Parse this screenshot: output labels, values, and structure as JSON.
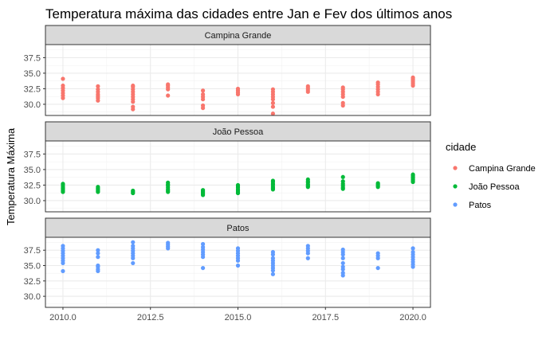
{
  "chart_data": {
    "type": "scatter",
    "title": "Temperatura máxima das cidades entre Jan e Fev dos últimos anos",
    "ylabel": "Temperatura Máxima",
    "xlabel": "",
    "x_ticks": [
      "2010.0",
      "2012.5",
      "2015.0",
      "2017.5",
      "2020.0"
    ],
    "x_tick_values": [
      2010,
      2012.5,
      2015,
      2017.5,
      2020
    ],
    "y_ticks": [
      "30.0",
      "32.5",
      "35.0",
      "37.5"
    ],
    "y_tick_values": [
      30,
      32.5,
      35,
      37.5
    ],
    "xlim": [
      2009.5,
      2020.5
    ],
    "ylim": [
      28.2,
      39.6
    ],
    "grid": true,
    "legend": {
      "title": "cidade",
      "position": "right"
    },
    "facets": [
      {
        "name": "Campina Grande",
        "color": "#F8766D",
        "points": [
          [
            2010,
            31.0
          ],
          [
            2010,
            31.4
          ],
          [
            2010,
            31.8
          ],
          [
            2010,
            32.2
          ],
          [
            2010,
            32.6
          ],
          [
            2010,
            33.0
          ],
          [
            2010,
            34.1
          ],
          [
            2011,
            30.6
          ],
          [
            2011,
            31.0
          ],
          [
            2011,
            31.3
          ],
          [
            2011,
            31.6
          ],
          [
            2011,
            32.0
          ],
          [
            2011,
            32.4
          ],
          [
            2011,
            32.9
          ],
          [
            2012,
            29.2
          ],
          [
            2012,
            29.6
          ],
          [
            2012,
            30.4
          ],
          [
            2012,
            30.8
          ],
          [
            2012,
            31.2
          ],
          [
            2012,
            31.6
          ],
          [
            2012,
            32.0
          ],
          [
            2012,
            32.4
          ],
          [
            2012,
            32.8
          ],
          [
            2012,
            33.0
          ],
          [
            2013,
            31.4
          ],
          [
            2013,
            32.4
          ],
          [
            2013,
            32.7
          ],
          [
            2013,
            33.0
          ],
          [
            2013,
            33.2
          ],
          [
            2014,
            29.4
          ],
          [
            2014,
            29.8
          ],
          [
            2014,
            30.8
          ],
          [
            2014,
            31.2
          ],
          [
            2014,
            31.6
          ],
          [
            2014,
            32.2
          ],
          [
            2015,
            31.6
          ],
          [
            2015,
            31.9
          ],
          [
            2015,
            32.2
          ],
          [
            2015,
            32.5
          ],
          [
            2016,
            28.5
          ],
          [
            2016,
            29.6
          ],
          [
            2016,
            30.2
          ],
          [
            2016,
            30.8
          ],
          [
            2016,
            31.2
          ],
          [
            2016,
            31.6
          ],
          [
            2016,
            32.0
          ],
          [
            2016,
            32.4
          ],
          [
            2017,
            32.0
          ],
          [
            2017,
            32.3
          ],
          [
            2017,
            32.6
          ],
          [
            2017,
            32.9
          ],
          [
            2018,
            29.8
          ],
          [
            2018,
            30.2
          ],
          [
            2018,
            31.2
          ],
          [
            2018,
            31.6
          ],
          [
            2018,
            32.0
          ],
          [
            2018,
            32.4
          ],
          [
            2018,
            32.7
          ],
          [
            2019,
            31.6
          ],
          [
            2019,
            32.0
          ],
          [
            2019,
            32.4
          ],
          [
            2019,
            32.8
          ],
          [
            2019,
            33.2
          ],
          [
            2019,
            33.5
          ],
          [
            2020,
            33.0
          ],
          [
            2020,
            33.3
          ],
          [
            2020,
            33.6
          ],
          [
            2020,
            33.9
          ],
          [
            2020,
            34.1
          ],
          [
            2020,
            34.3
          ]
        ]
      },
      {
        "name": "João Pessoa",
        "color": "#00BA38",
        "points": [
          [
            2010,
            31.4
          ],
          [
            2010,
            31.6
          ],
          [
            2010,
            31.8
          ],
          [
            2010,
            32.0
          ],
          [
            2010,
            32.2
          ],
          [
            2010,
            32.5
          ],
          [
            2010,
            32.7
          ],
          [
            2011,
            31.4
          ],
          [
            2011,
            31.6
          ],
          [
            2011,
            31.8
          ],
          [
            2011,
            32.0
          ],
          [
            2011,
            32.2
          ],
          [
            2012,
            31.2
          ],
          [
            2012,
            31.4
          ],
          [
            2012,
            31.6
          ],
          [
            2013,
            31.4
          ],
          [
            2013,
            31.6
          ],
          [
            2013,
            31.8
          ],
          [
            2013,
            32.1
          ],
          [
            2013,
            32.4
          ],
          [
            2013,
            32.6
          ],
          [
            2013,
            32.9
          ],
          [
            2014,
            30.9
          ],
          [
            2014,
            31.1
          ],
          [
            2014,
            31.3
          ],
          [
            2014,
            31.5
          ],
          [
            2014,
            31.7
          ],
          [
            2015,
            31.2
          ],
          [
            2015,
            31.4
          ],
          [
            2015,
            31.6
          ],
          [
            2015,
            31.8
          ],
          [
            2015,
            32.1
          ],
          [
            2015,
            32.3
          ],
          [
            2015,
            32.5
          ],
          [
            2016,
            31.8
          ],
          [
            2016,
            32.0
          ],
          [
            2016,
            32.2
          ],
          [
            2016,
            32.5
          ],
          [
            2016,
            32.7
          ],
          [
            2016,
            33.0
          ],
          [
            2016,
            33.2
          ],
          [
            2017,
            32.2
          ],
          [
            2017,
            32.4
          ],
          [
            2017,
            32.6
          ],
          [
            2017,
            32.9
          ],
          [
            2017,
            33.1
          ],
          [
            2017,
            33.4
          ],
          [
            2018,
            31.9
          ],
          [
            2018,
            32.1
          ],
          [
            2018,
            32.4
          ],
          [
            2018,
            32.7
          ],
          [
            2018,
            33.1
          ],
          [
            2018,
            33.8
          ],
          [
            2019,
            32.2
          ],
          [
            2019,
            32.4
          ],
          [
            2019,
            32.6
          ],
          [
            2019,
            32.8
          ],
          [
            2020,
            33.0
          ],
          [
            2020,
            33.2
          ],
          [
            2020,
            33.4
          ],
          [
            2020,
            33.6
          ],
          [
            2020,
            33.8
          ],
          [
            2020,
            34.0
          ],
          [
            2020,
            34.2
          ]
        ]
      },
      {
        "name": "Patos",
        "color": "#619CFF",
        "points": [
          [
            2010,
            34.1
          ],
          [
            2010,
            35.4
          ],
          [
            2010,
            35.8
          ],
          [
            2010,
            36.2
          ],
          [
            2010,
            36.6
          ],
          [
            2010,
            37.0
          ],
          [
            2010,
            37.4
          ],
          [
            2010,
            37.8
          ],
          [
            2010,
            38.2
          ],
          [
            2011,
            34.1
          ],
          [
            2011,
            34.4
          ],
          [
            2011,
            34.8
          ],
          [
            2011,
            35.0
          ],
          [
            2011,
            36.4
          ],
          [
            2011,
            37.0
          ],
          [
            2011,
            37.5
          ],
          [
            2012,
            35.4
          ],
          [
            2012,
            36.2
          ],
          [
            2012,
            36.6
          ],
          [
            2012,
            37.0
          ],
          [
            2012,
            37.4
          ],
          [
            2012,
            37.8
          ],
          [
            2012,
            38.2
          ],
          [
            2012,
            38.8
          ],
          [
            2013,
            37.8
          ],
          [
            2013,
            38.1
          ],
          [
            2013,
            38.4
          ],
          [
            2013,
            38.7
          ],
          [
            2014,
            34.6
          ],
          [
            2014,
            36.4
          ],
          [
            2014,
            36.8
          ],
          [
            2014,
            37.2
          ],
          [
            2014,
            37.6
          ],
          [
            2014,
            38.0
          ],
          [
            2014,
            38.5
          ],
          [
            2015,
            35.0
          ],
          [
            2015,
            35.8
          ],
          [
            2015,
            36.2
          ],
          [
            2015,
            36.6
          ],
          [
            2015,
            37.0
          ],
          [
            2015,
            37.4
          ],
          [
            2015,
            37.8
          ],
          [
            2016,
            33.6
          ],
          [
            2016,
            34.2
          ],
          [
            2016,
            34.6
          ],
          [
            2016,
            35.0
          ],
          [
            2016,
            35.4
          ],
          [
            2016,
            35.8
          ],
          [
            2016,
            36.2
          ],
          [
            2016,
            36.8
          ],
          [
            2016,
            37.2
          ],
          [
            2017,
            36.2
          ],
          [
            2017,
            37.0
          ],
          [
            2017,
            37.4
          ],
          [
            2017,
            37.8
          ],
          [
            2017,
            38.2
          ],
          [
            2018,
            33.4
          ],
          [
            2018,
            33.8
          ],
          [
            2018,
            34.4
          ],
          [
            2018,
            34.8
          ],
          [
            2018,
            35.4
          ],
          [
            2018,
            36.2
          ],
          [
            2018,
            36.8
          ],
          [
            2018,
            37.2
          ],
          [
            2018,
            37.6
          ],
          [
            2019,
            34.6
          ],
          [
            2019,
            36.2
          ],
          [
            2019,
            36.6
          ],
          [
            2019,
            37.0
          ],
          [
            2020,
            34.8
          ],
          [
            2020,
            35.2
          ],
          [
            2020,
            35.6
          ],
          [
            2020,
            36.0
          ],
          [
            2020,
            36.4
          ],
          [
            2020,
            36.8
          ],
          [
            2020,
            37.2
          ],
          [
            2020,
            37.8
          ]
        ]
      }
    ]
  }
}
